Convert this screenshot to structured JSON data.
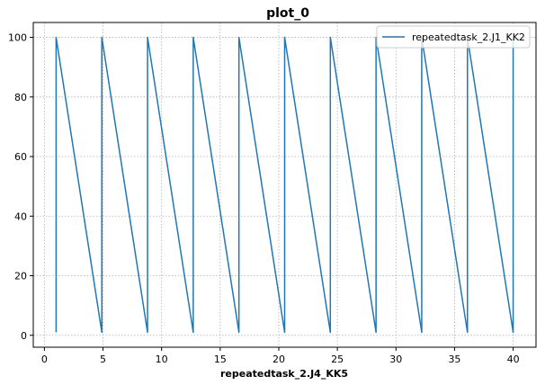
{
  "chart_data": {
    "type": "line",
    "title": "plot_0",
    "xlabel": "repeatedtask_2.J4_KK5",
    "ylabel": "",
    "xlim": [
      -0.95,
      41.95
    ],
    "ylim": [
      -4.0,
      105.0
    ],
    "xticks": [
      0,
      5,
      10,
      15,
      20,
      25,
      30,
      35,
      40
    ],
    "yticks": [
      0,
      20,
      40,
      60,
      80,
      100
    ],
    "grid": true,
    "legend_position": "top-right",
    "series": [
      {
        "name": "repeatedtask_2.J1_KK2",
        "color": "#1f77b4",
        "x": [
          1,
          1,
          4.9,
          4.9,
          8.8,
          8.8,
          12.7,
          12.7,
          16.6,
          16.6,
          20.5,
          20.5,
          24.4,
          24.4,
          28.3,
          28.3,
          32.2,
          32.2,
          36.1,
          36.1,
          40,
          40
        ],
        "y": [
          1,
          100,
          1,
          100,
          1,
          100,
          1,
          100,
          1,
          100,
          1,
          100,
          1,
          100,
          1,
          100,
          1,
          100,
          1,
          100,
          1,
          100
        ]
      }
    ]
  }
}
